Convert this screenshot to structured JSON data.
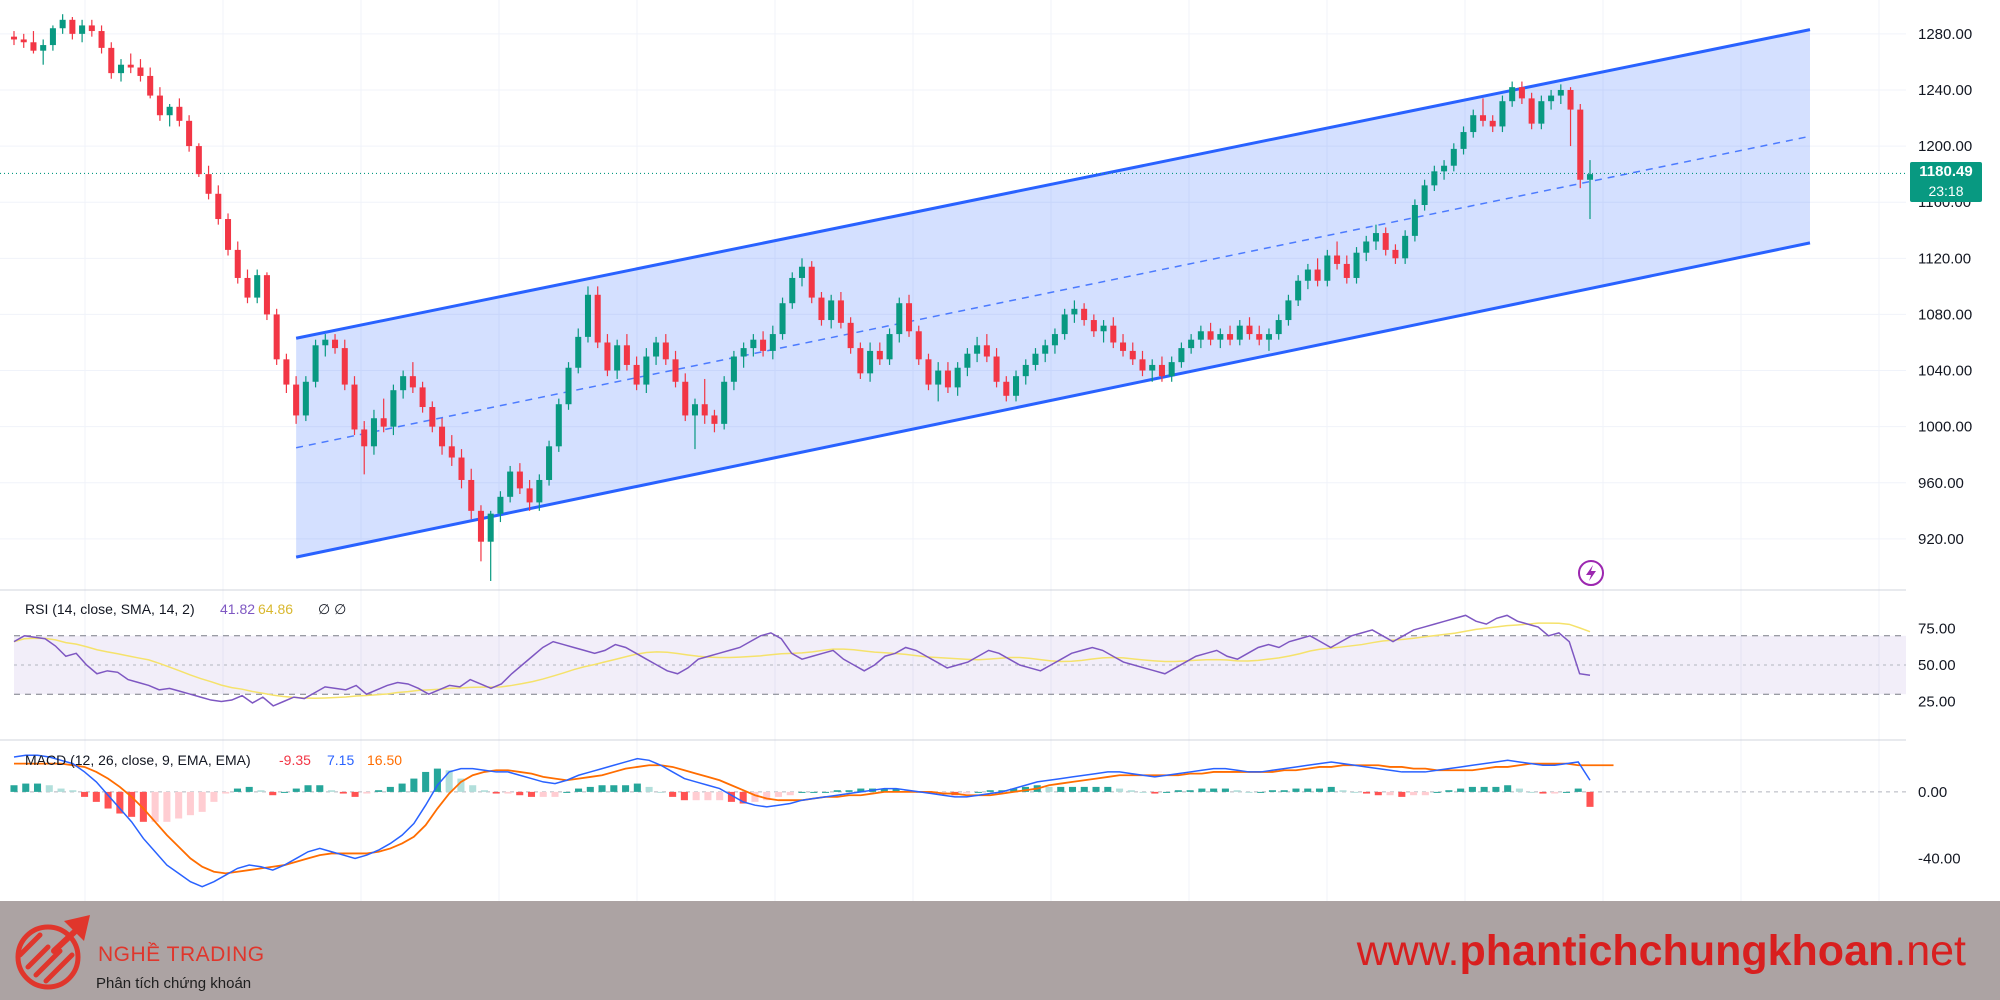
{
  "chart_data": {
    "type": "candlestick",
    "price_axis": {
      "ticks": [
        "1280.00",
        "1240.00",
        "1200.00",
        "1160.00",
        "1120.00",
        "1080.00",
        "1040.00",
        "1000.00",
        "960.00",
        "920.00"
      ],
      "range": [
        885,
        1297
      ]
    },
    "current_price": "1180.49",
    "countdown": "23:18",
    "regression_channel": {
      "upper": {
        "start": 1063,
        "end": 1283
      },
      "middle": {
        "start": 985,
        "end": 1207
      },
      "lower": {
        "start": 907,
        "end": 1131
      }
    },
    "ohlc": [
      [
        1278,
        1282,
        1272,
        1276
      ],
      [
        1276,
        1280,
        1270,
        1274
      ],
      [
        1274,
        1282,
        1266,
        1268
      ],
      [
        1268,
        1276,
        1258,
        1272
      ],
      [
        1272,
        1286,
        1268,
        1284
      ],
      [
        1284,
        1294,
        1280,
        1290
      ],
      [
        1290,
        1292,
        1276,
        1280
      ],
      [
        1280,
        1290,
        1274,
        1286
      ],
      [
        1286,
        1290,
        1278,
        1282
      ],
      [
        1282,
        1286,
        1266,
        1270
      ],
      [
        1270,
        1274,
        1248,
        1252
      ],
      [
        1252,
        1262,
        1246,
        1258
      ],
      [
        1258,
        1266,
        1252,
        1256
      ],
      [
        1256,
        1262,
        1246,
        1250
      ],
      [
        1250,
        1256,
        1234,
        1236
      ],
      [
        1236,
        1242,
        1218,
        1222
      ],
      [
        1222,
        1230,
        1214,
        1228
      ],
      [
        1228,
        1234,
        1214,
        1218
      ],
      [
        1218,
        1222,
        1196,
        1200
      ],
      [
        1200,
        1202,
        1178,
        1180
      ],
      [
        1180,
        1186,
        1162,
        1166
      ],
      [
        1166,
        1172,
        1144,
        1148
      ],
      [
        1148,
        1152,
        1122,
        1126
      ],
      [
        1126,
        1132,
        1102,
        1106
      ],
      [
        1106,
        1112,
        1088,
        1092
      ],
      [
        1092,
        1112,
        1088,
        1108
      ],
      [
        1108,
        1110,
        1076,
        1080
      ],
      [
        1080,
        1084,
        1044,
        1048
      ],
      [
        1048,
        1052,
        1024,
        1030
      ],
      [
        1030,
        1036,
        1002,
        1008
      ],
      [
        1008,
        1036,
        1004,
        1032
      ],
      [
        1032,
        1062,
        1028,
        1058
      ],
      [
        1058,
        1066,
        1050,
        1062
      ],
      [
        1062,
        1066,
        1052,
        1056
      ],
      [
        1056,
        1062,
        1026,
        1030
      ],
      [
        1030,
        1036,
        994,
        998
      ],
      [
        998,
        1004,
        966,
        986
      ],
      [
        986,
        1012,
        980,
        1006
      ],
      [
        1006,
        1020,
        996,
        1000
      ],
      [
        1000,
        1030,
        994,
        1026
      ],
      [
        1026,
        1040,
        1020,
        1036
      ],
      [
        1036,
        1046,
        1024,
        1028
      ],
      [
        1028,
        1032,
        1010,
        1014
      ],
      [
        1014,
        1018,
        996,
        1000
      ],
      [
        1000,
        1006,
        980,
        986
      ],
      [
        986,
        994,
        972,
        978
      ],
      [
        978,
        984,
        956,
        962
      ],
      [
        962,
        970,
        934,
        940
      ],
      [
        940,
        944,
        904,
        918
      ],
      [
        918,
        940,
        890,
        938
      ],
      [
        938,
        954,
        932,
        950
      ],
      [
        950,
        972,
        946,
        968
      ],
      [
        968,
        974,
        952,
        956
      ],
      [
        956,
        962,
        940,
        946
      ],
      [
        946,
        966,
        940,
        962
      ],
      [
        962,
        990,
        958,
        986
      ],
      [
        986,
        1020,
        982,
        1016
      ],
      [
        1016,
        1046,
        1012,
        1042
      ],
      [
        1042,
        1070,
        1038,
        1064
      ],
      [
        1064,
        1100,
        1060,
        1094
      ],
      [
        1094,
        1100,
        1056,
        1060
      ],
      [
        1060,
        1066,
        1036,
        1040
      ],
      [
        1040,
        1062,
        1034,
        1058
      ],
      [
        1058,
        1066,
        1040,
        1044
      ],
      [
        1044,
        1050,
        1026,
        1030
      ],
      [
        1030,
        1056,
        1024,
        1050
      ],
      [
        1050,
        1064,
        1044,
        1060
      ],
      [
        1060,
        1066,
        1044,
        1048
      ],
      [
        1048,
        1054,
        1028,
        1032
      ],
      [
        1032,
        1038,
        1004,
        1008
      ],
      [
        1008,
        1020,
        984,
        1016
      ],
      [
        1016,
        1034,
        1002,
        1008
      ],
      [
        1008,
        1012,
        996,
        1002
      ],
      [
        1002,
        1036,
        998,
        1032
      ],
      [
        1032,
        1054,
        1026,
        1050
      ],
      [
        1050,
        1060,
        1042,
        1056
      ],
      [
        1056,
        1066,
        1050,
        1062
      ],
      [
        1062,
        1068,
        1050,
        1054
      ],
      [
        1054,
        1072,
        1048,
        1066
      ],
      [
        1066,
        1092,
        1062,
        1088
      ],
      [
        1088,
        1110,
        1084,
        1106
      ],
      [
        1106,
        1120,
        1100,
        1114
      ],
      [
        1114,
        1118,
        1088,
        1092
      ],
      [
        1092,
        1096,
        1072,
        1076
      ],
      [
        1076,
        1094,
        1070,
        1090
      ],
      [
        1090,
        1096,
        1070,
        1074
      ],
      [
        1074,
        1078,
        1052,
        1056
      ],
      [
        1056,
        1060,
        1034,
        1038
      ],
      [
        1038,
        1060,
        1032,
        1054
      ],
      [
        1054,
        1060,
        1044,
        1048
      ],
      [
        1048,
        1070,
        1044,
        1066
      ],
      [
        1066,
        1092,
        1060,
        1088
      ],
      [
        1088,
        1094,
        1064,
        1068
      ],
      [
        1068,
        1072,
        1044,
        1048
      ],
      [
        1048,
        1052,
        1026,
        1030
      ],
      [
        1030,
        1046,
        1018,
        1040
      ],
      [
        1040,
        1046,
        1024,
        1028
      ],
      [
        1028,
        1046,
        1022,
        1042
      ],
      [
        1042,
        1056,
        1036,
        1052
      ],
      [
        1052,
        1064,
        1046,
        1058
      ],
      [
        1058,
        1066,
        1046,
        1050
      ],
      [
        1050,
        1056,
        1028,
        1032
      ],
      [
        1032,
        1036,
        1018,
        1022
      ],
      [
        1022,
        1040,
        1018,
        1036
      ],
      [
        1036,
        1048,
        1030,
        1044
      ],
      [
        1044,
        1056,
        1040,
        1052
      ],
      [
        1052,
        1062,
        1046,
        1058
      ],
      [
        1058,
        1070,
        1052,
        1066
      ],
      [
        1066,
        1084,
        1062,
        1080
      ],
      [
        1080,
        1090,
        1074,
        1084
      ],
      [
        1084,
        1088,
        1072,
        1076
      ],
      [
        1076,
        1080,
        1064,
        1068
      ],
      [
        1068,
        1076,
        1060,
        1072
      ],
      [
        1072,
        1078,
        1056,
        1060
      ],
      [
        1060,
        1066,
        1050,
        1054
      ],
      [
        1054,
        1060,
        1044,
        1048
      ],
      [
        1048,
        1054,
        1036,
        1040
      ],
      [
        1040,
        1048,
        1032,
        1044
      ],
      [
        1044,
        1050,
        1032,
        1036
      ],
      [
        1036,
        1050,
        1032,
        1046
      ],
      [
        1046,
        1060,
        1042,
        1056
      ],
      [
        1056,
        1066,
        1052,
        1062
      ],
      [
        1062,
        1072,
        1056,
        1068
      ],
      [
        1068,
        1074,
        1058,
        1062
      ],
      [
        1062,
        1070,
        1056,
        1066
      ],
      [
        1066,
        1072,
        1058,
        1062
      ],
      [
        1062,
        1076,
        1058,
        1072
      ],
      [
        1072,
        1078,
        1062,
        1066
      ],
      [
        1066,
        1072,
        1058,
        1062
      ],
      [
        1062,
        1070,
        1054,
        1066
      ],
      [
        1066,
        1080,
        1062,
        1076
      ],
      [
        1076,
        1094,
        1072,
        1090
      ],
      [
        1090,
        1108,
        1086,
        1104
      ],
      [
        1104,
        1116,
        1098,
        1112
      ],
      [
        1112,
        1120,
        1100,
        1104
      ],
      [
        1104,
        1126,
        1100,
        1122
      ],
      [
        1122,
        1132,
        1112,
        1116
      ],
      [
        1116,
        1122,
        1102,
        1106
      ],
      [
        1106,
        1128,
        1102,
        1124
      ],
      [
        1124,
        1136,
        1118,
        1132
      ],
      [
        1132,
        1144,
        1126,
        1138
      ],
      [
        1138,
        1142,
        1122,
        1126
      ],
      [
        1126,
        1130,
        1116,
        1120
      ],
      [
        1120,
        1140,
        1116,
        1136
      ],
      [
        1136,
        1162,
        1132,
        1158
      ],
      [
        1158,
        1176,
        1154,
        1172
      ],
      [
        1172,
        1186,
        1168,
        1182
      ],
      [
        1182,
        1190,
        1176,
        1186
      ],
      [
        1186,
        1202,
        1182,
        1198
      ],
      [
        1198,
        1214,
        1194,
        1210
      ],
      [
        1210,
        1226,
        1206,
        1222
      ],
      [
        1222,
        1234,
        1214,
        1218
      ],
      [
        1218,
        1222,
        1210,
        1214
      ],
      [
        1214,
        1236,
        1210,
        1232
      ],
      [
        1232,
        1246,
        1228,
        1242
      ],
      [
        1242,
        1246,
        1230,
        1234
      ],
      [
        1234,
        1238,
        1212,
        1216
      ],
      [
        1216,
        1236,
        1212,
        1232
      ],
      [
        1232,
        1240,
        1226,
        1236
      ],
      [
        1236,
        1244,
        1230,
        1240
      ],
      [
        1240,
        1242,
        1200,
        1226
      ],
      [
        1226,
        1230,
        1170,
        1176
      ],
      [
        1176,
        1190,
        1148,
        1180
      ]
    ],
    "rsi": {
      "label": "RSI (14, close, SMA, 14, 2)",
      "value": "41.82",
      "sma_value": "64.86",
      "extra": "∅ ∅",
      "ticks": [
        "75.00",
        "50.00",
        "25.00"
      ],
      "band": [
        30,
        70
      ],
      "values": [
        66,
        70,
        69,
        68,
        63,
        56,
        58,
        50,
        44,
        46,
        45,
        40,
        38,
        36,
        33,
        34,
        32,
        30,
        28,
        26,
        25,
        26,
        29,
        24,
        28,
        22,
        25,
        28,
        27,
        31,
        35,
        34,
        33,
        36,
        30,
        33,
        36,
        38,
        37,
        34,
        30,
        33,
        36,
        35,
        40,
        37,
        34,
        37,
        44,
        50,
        56,
        62,
        66,
        64,
        62,
        60,
        58,
        60,
        64,
        62,
        58,
        54,
        50,
        46,
        44,
        48,
        54,
        56,
        58,
        60,
        62,
        66,
        70,
        72,
        68,
        58,
        54,
        56,
        58,
        60,
        54,
        50,
        46,
        50,
        56,
        58,
        62,
        60,
        56,
        52,
        48,
        50,
        52,
        56,
        60,
        58,
        54,
        50,
        48,
        46,
        50,
        54,
        58,
        60,
        62,
        60,
        56,
        52,
        50,
        48,
        46,
        44,
        48,
        52,
        56,
        58,
        60,
        56,
        54,
        58,
        62,
        64,
        62,
        66,
        68,
        70,
        66,
        62,
        66,
        70,
        72,
        74,
        70,
        66,
        70,
        74,
        76,
        78,
        80,
        82,
        84,
        80,
        78,
        82,
        84,
        80,
        78,
        76,
        70,
        72,
        66,
        44,
        43
      ]
    },
    "macd": {
      "label": "MACD (12, 26, close, 9, EMA, EMA)",
      "histogram_value": "-9.35",
      "macd_value": "7.15",
      "signal_value": "16.50",
      "ticks": [
        "0.00",
        "-40.00"
      ],
      "macd_line": [
        21,
        22,
        22,
        21,
        19,
        17,
        12,
        6,
        -2,
        -10,
        -18,
        -28,
        -36,
        -44,
        -49,
        -54,
        -57,
        -54,
        -50,
        -46,
        -44,
        -45,
        -47,
        -44,
        -40,
        -36,
        -34,
        -36,
        -38,
        -40,
        -38,
        -35,
        -31,
        -26,
        -19,
        -8,
        4,
        12,
        14,
        14,
        13,
        12,
        12,
        10,
        8,
        6,
        5,
        7,
        10,
        12,
        14,
        16,
        18,
        20,
        19,
        16,
        12,
        8,
        6,
        4,
        2,
        -2,
        -6,
        -8,
        -9,
        -8,
        -7,
        -5,
        -4,
        -3,
        -2,
        -1,
        0,
        1,
        2,
        2,
        1,
        0,
        -1,
        -2,
        -3,
        -3,
        -2,
        -1,
        0,
        2,
        4,
        6,
        7,
        8,
        9,
        10,
        11,
        12,
        12,
        11,
        10,
        9,
        10,
        11,
        12,
        13,
        14,
        14,
        13,
        12,
        12,
        13,
        14,
        15,
        16,
        17,
        18,
        17,
        16,
        15,
        14,
        13,
        12,
        12,
        12,
        13,
        14,
        15,
        16,
        17,
        18,
        19,
        18,
        17,
        16,
        16,
        17,
        18,
        7
      ],
      "signal_line": [
        17,
        17,
        17,
        17,
        17,
        16,
        15,
        12,
        8,
        3,
        -3,
        -10,
        -18,
        -26,
        -33,
        -40,
        -45,
        -48,
        -49,
        -48,
        -47,
        -46,
        -45,
        -44,
        -42,
        -40,
        -38,
        -37,
        -37,
        -37,
        -37,
        -36,
        -34,
        -31,
        -27,
        -20,
        -10,
        -1,
        6,
        10,
        12,
        13,
        13,
        12,
        11,
        9,
        8,
        7,
        8,
        9,
        10,
        12,
        14,
        15,
        16,
        16,
        15,
        13,
        11,
        9,
        7,
        4,
        1,
        -2,
        -4,
        -5,
        -5,
        -5,
        -4,
        -3,
        -3,
        -2,
        -2,
        -1,
        0,
        0,
        0,
        0,
        0,
        -1,
        -1,
        -2,
        -2,
        -2,
        -1,
        0,
        1,
        2,
        4,
        5,
        6,
        7,
        8,
        9,
        10,
        10,
        10,
        10,
        10,
        10,
        11,
        11,
        12,
        12,
        12,
        12,
        12,
        12,
        13,
        13,
        14,
        15,
        15,
        16,
        16,
        16,
        16,
        15,
        15,
        14,
        14,
        13,
        13,
        13,
        13,
        14,
        15,
        15,
        16,
        17,
        17,
        17,
        17,
        16,
        16,
        16,
        16
      ]
    }
  },
  "branding": {
    "name": "NGHỀ TRADING",
    "tagline": "Phân tích chứng khoán",
    "website_prefix": "www.",
    "website_domain": "phantichchungkhoan",
    "website_suffix": ".net"
  },
  "colors": {
    "up": "#089981",
    "down": "#f23645",
    "channel_line": "#2962ff",
    "channel_fill": "#2962ff",
    "rsi_line": "#7e57c2",
    "rsi_sma": "#f5e26b",
    "macd_line": "#2962ff",
    "signal_line": "#ff6d00",
    "footer_bg": "#aca3a3",
    "brand_red": "#e0362c"
  }
}
